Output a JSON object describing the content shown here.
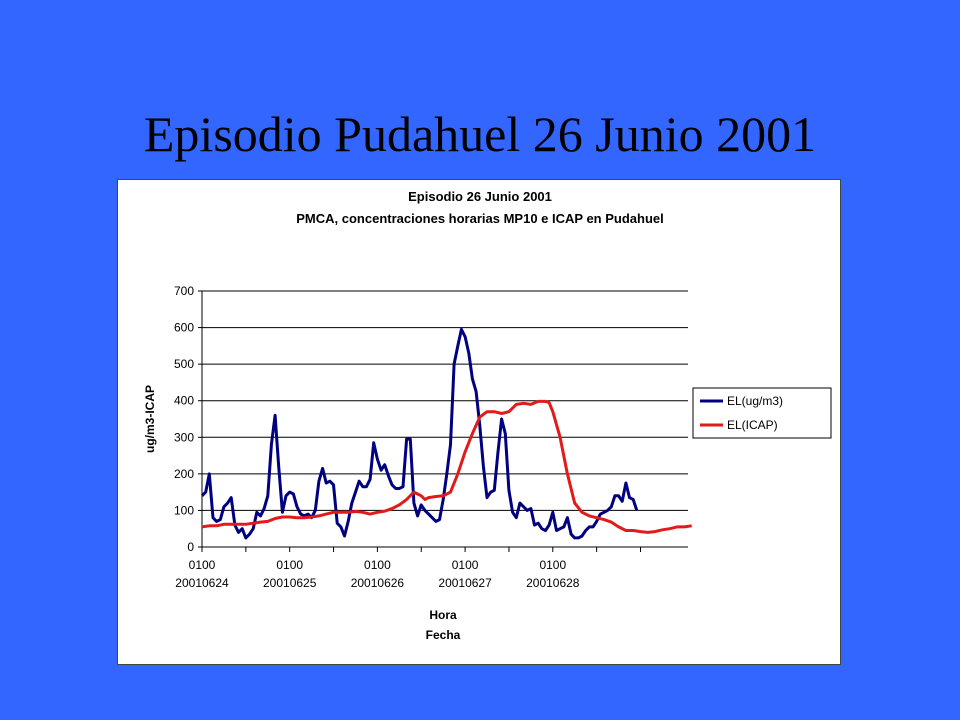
{
  "slide": {
    "title": "Episodio Pudahuel 26 Junio 2001"
  },
  "colors": {
    "background": "#3366ff",
    "series_mp10": "#000080",
    "series_icap": "#e31a1a",
    "gridline": "#000000"
  },
  "chart_data": {
    "type": "line",
    "title": "Episodio 26 Junio 2001",
    "subtitle": "PMCA, concentraciones horarias MP10  e ICAP en Pudahuel",
    "ylabel": "ug/m3-ICAP",
    "xlabel": "Hora",
    "xlabel2": "Fecha",
    "ylim": [
      0,
      700
    ],
    "yticks": [
      0,
      100,
      200,
      300,
      400,
      500,
      600,
      700
    ],
    "grid": true,
    "legend_position": "right",
    "x_range": [
      0,
      120
    ],
    "x_ticks": [
      {
        "x": 0,
        "hour": "0100",
        "date": "20010624"
      },
      {
        "x": 24,
        "hour": "0100",
        "date": "20010625"
      },
      {
        "x": 48,
        "hour": "0100",
        "date": "20010626"
      },
      {
        "x": 72,
        "hour": "0100",
        "date": "20010627"
      },
      {
        "x": 96,
        "hour": "0100",
        "date": "20010628"
      }
    ],
    "minor_ticks": [
      12,
      36,
      60,
      84,
      108,
      120
    ],
    "series": [
      {
        "name": "EL(ug/m3)",
        "color": "#000080",
        "points": [
          [
            0,
            140
          ],
          [
            1,
            150
          ],
          [
            2,
            200
          ],
          [
            3,
            80
          ],
          [
            4,
            70
          ],
          [
            5,
            75
          ],
          [
            6,
            110
          ],
          [
            7,
            120
          ],
          [
            8,
            135
          ],
          [
            9,
            60
          ],
          [
            10,
            40
          ],
          [
            11,
            50
          ],
          [
            12,
            25
          ],
          [
            13,
            35
          ],
          [
            14,
            50
          ],
          [
            15,
            95
          ],
          [
            16,
            85
          ],
          [
            17,
            105
          ],
          [
            18,
            140
          ],
          [
            19,
            280
          ],
          [
            20,
            360
          ],
          [
            21,
            220
          ],
          [
            22,
            95
          ],
          [
            23,
            140
          ],
          [
            24,
            150
          ],
          [
            25,
            145
          ],
          [
            26,
            110
          ],
          [
            27,
            90
          ],
          [
            28,
            85
          ],
          [
            29,
            90
          ],
          [
            30,
            80
          ],
          [
            31,
            100
          ],
          [
            32,
            180
          ],
          [
            33,
            215
          ],
          [
            34,
            175
          ],
          [
            35,
            180
          ],
          [
            36,
            170
          ],
          [
            37,
            65
          ],
          [
            38,
            55
          ],
          [
            39,
            30
          ],
          [
            40,
            70
          ],
          [
            41,
            120
          ],
          [
            42,
            150
          ],
          [
            43,
            180
          ],
          [
            44,
            165
          ],
          [
            45,
            165
          ],
          [
            46,
            185
          ],
          [
            47,
            285
          ],
          [
            48,
            240
          ],
          [
            49,
            210
          ],
          [
            50,
            225
          ],
          [
            51,
            195
          ],
          [
            52,
            170
          ],
          [
            53,
            160
          ],
          [
            54,
            160
          ],
          [
            55,
            165
          ],
          [
            56,
            295
          ],
          [
            57,
            295
          ],
          [
            58,
            120
          ],
          [
            59,
            85
          ],
          [
            60,
            115
          ],
          [
            61,
            100
          ],
          [
            62,
            90
          ],
          [
            63,
            80
          ],
          [
            64,
            70
          ],
          [
            65,
            75
          ],
          [
            66,
            130
          ],
          [
            67,
            200
          ],
          [
            68,
            280
          ],
          [
            69,
            500
          ],
          [
            70,
            550
          ],
          [
            71,
            595
          ],
          [
            72,
            575
          ],
          [
            73,
            530
          ],
          [
            74,
            460
          ],
          [
            75,
            425
          ],
          [
            76,
            335
          ],
          [
            77,
            220
          ],
          [
            78,
            135
          ],
          [
            79,
            150
          ],
          [
            80,
            155
          ],
          [
            81,
            260
          ],
          [
            82,
            350
          ],
          [
            83,
            310
          ],
          [
            84,
            155
          ],
          [
            85,
            95
          ],
          [
            86,
            80
          ],
          [
            87,
            120
          ],
          [
            88,
            110
          ],
          [
            89,
            100
          ],
          [
            90,
            105
          ],
          [
            91,
            60
          ],
          [
            92,
            65
          ],
          [
            93,
            50
          ],
          [
            94,
            45
          ],
          [
            95,
            60
          ],
          [
            96,
            95
          ],
          [
            97,
            45
          ],
          [
            98,
            50
          ],
          [
            99,
            55
          ],
          [
            100,
            80
          ],
          [
            101,
            35
          ],
          [
            102,
            25
          ],
          [
            103,
            25
          ],
          [
            104,
            30
          ],
          [
            105,
            45
          ],
          [
            106,
            55
          ],
          [
            107,
            55
          ],
          [
            108,
            70
          ],
          [
            109,
            90
          ],
          [
            110,
            95
          ],
          [
            111,
            100
          ],
          [
            112,
            110
          ],
          [
            113,
            140
          ],
          [
            114,
            140
          ],
          [
            115,
            125
          ],
          [
            116,
            175
          ],
          [
            117,
            135
          ],
          [
            118,
            130
          ],
          [
            119,
            100
          ]
        ]
      },
      {
        "name": "EL(ICAP)",
        "color": "#e31a1a",
        "points": [
          [
            0,
            55
          ],
          [
            2,
            58
          ],
          [
            4,
            58
          ],
          [
            6,
            62
          ],
          [
            8,
            62
          ],
          [
            10,
            62
          ],
          [
            12,
            62
          ],
          [
            14,
            65
          ],
          [
            16,
            68
          ],
          [
            18,
            70
          ],
          [
            20,
            78
          ],
          [
            22,
            82
          ],
          [
            24,
            82
          ],
          [
            26,
            80
          ],
          [
            28,
            80
          ],
          [
            30,
            82
          ],
          [
            32,
            85
          ],
          [
            34,
            90
          ],
          [
            36,
            95
          ],
          [
            38,
            95
          ],
          [
            40,
            95
          ],
          [
            42,
            97
          ],
          [
            44,
            95
          ],
          [
            46,
            90
          ],
          [
            48,
            95
          ],
          [
            50,
            98
          ],
          [
            52,
            105
          ],
          [
            54,
            115
          ],
          [
            56,
            130
          ],
          [
            58,
            150
          ],
          [
            60,
            140
          ],
          [
            61,
            130
          ],
          [
            62,
            135
          ],
          [
            64,
            138
          ],
          [
            66,
            140
          ],
          [
            68,
            150
          ],
          [
            70,
            200
          ],
          [
            72,
            260
          ],
          [
            74,
            310
          ],
          [
            76,
            355
          ],
          [
            78,
            370
          ],
          [
            80,
            370
          ],
          [
            82,
            365
          ],
          [
            84,
            370
          ],
          [
            86,
            390
          ],
          [
            88,
            393
          ],
          [
            90,
            390
          ],
          [
            92,
            398
          ],
          [
            94,
            398
          ],
          [
            95,
            395
          ],
          [
            96,
            370
          ],
          [
            98,
            300
          ],
          [
            100,
            200
          ],
          [
            102,
            120
          ],
          [
            104,
            95
          ],
          [
            106,
            85
          ],
          [
            108,
            80
          ],
          [
            110,
            75
          ],
          [
            112,
            68
          ],
          [
            114,
            55
          ],
          [
            116,
            45
          ],
          [
            118,
            45
          ],
          [
            120,
            42
          ],
          [
            122,
            40
          ],
          [
            124,
            42
          ],
          [
            126,
            47
          ],
          [
            128,
            50
          ],
          [
            130,
            55
          ],
          [
            132,
            55
          ],
          [
            134,
            58
          ]
        ]
      }
    ]
  }
}
